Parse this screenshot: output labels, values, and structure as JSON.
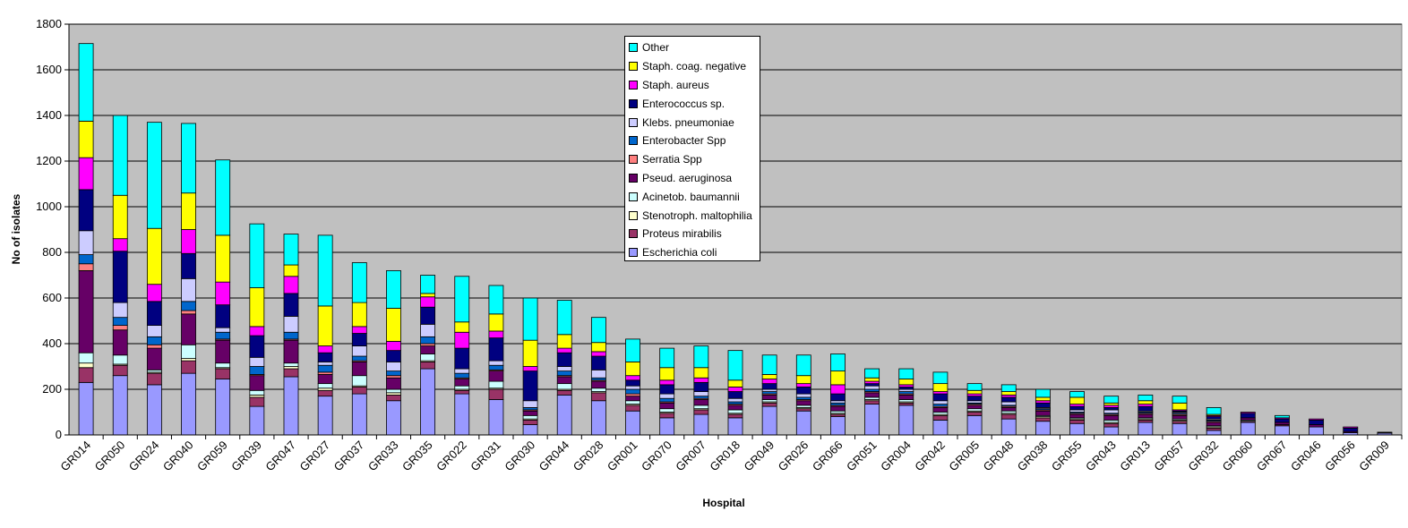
{
  "chart_data": {
    "type": "bar",
    "stacked": true,
    "title": "",
    "xlabel": "Hospital",
    "ylabel": "No of isolates",
    "ylim": [
      0,
      1800
    ],
    "yticks": [
      0,
      200,
      400,
      600,
      800,
      1000,
      1200,
      1400,
      1600,
      1800
    ],
    "grid": true,
    "legend_position": "top-center",
    "plot_background": "#C0C0C0",
    "categories": [
      "GR014",
      "GR050",
      "GR024",
      "GR040",
      "GR059",
      "GR039",
      "GR047",
      "GR027",
      "GR037",
      "GR033",
      "GR035",
      "GR022",
      "GR031",
      "GR030",
      "GR044",
      "GR028",
      "GR001",
      "GR070",
      "GR007",
      "GR018",
      "GR049",
      "GR026",
      "GR066",
      "GR051",
      "GR004",
      "GR042",
      "GR005",
      "GR048",
      "GR038",
      "GR055",
      "GR043",
      "GR013",
      "GR057",
      "GR032",
      "GR060",
      "GR067",
      "GR046",
      "GR056",
      "GR009"
    ],
    "series": [
      {
        "name": "Escherichia coli",
        "color": "#9999FF",
        "values": [
          230,
          260,
          220,
          270,
          245,
          125,
          255,
          170,
          180,
          150,
          290,
          180,
          155,
          45,
          175,
          150,
          105,
          75,
          90,
          75,
          125,
          105,
          80,
          135,
          130,
          65,
          85,
          70,
          60,
          50,
          35,
          55,
          50,
          20,
          55,
          40,
          35,
          10,
          8
        ]
      },
      {
        "name": "Proteus mirabilis",
        "color": "#993366",
        "values": [
          65,
          45,
          50,
          55,
          45,
          40,
          35,
          25,
          30,
          25,
          30,
          15,
          45,
          20,
          20,
          35,
          25,
          20,
          20,
          15,
          15,
          10,
          10,
          15,
          10,
          20,
          15,
          20,
          15,
          15,
          15,
          10,
          10,
          10,
          5,
          5,
          0,
          0,
          0
        ]
      },
      {
        "name": "Stenotroph. maltophilia",
        "color": "#FFFFCC",
        "values": [
          20,
          5,
          5,
          10,
          5,
          10,
          10,
          10,
          5,
          10,
          5,
          5,
          5,
          5,
          5,
          5,
          5,
          5,
          5,
          5,
          5,
          5,
          5,
          5,
          5,
          5,
          5,
          5,
          5,
          5,
          5,
          5,
          5,
          5,
          0,
          0,
          0,
          0,
          0
        ]
      },
      {
        "name": "Acinetob. baumannii",
        "color": "#CCFFFF",
        "values": [
          45,
          40,
          10,
          60,
          20,
          20,
          15,
          20,
          45,
          15,
          30,
          15,
          30,
          15,
          25,
          15,
          15,
          15,
          15,
          15,
          10,
          10,
          10,
          10,
          10,
          10,
          10,
          10,
          5,
          5,
          10,
          5,
          5,
          5,
          5,
          0,
          0,
          0,
          0
        ]
      },
      {
        "name": "Pseud. aeruginosa",
        "color": "#660066",
        "values": [
          360,
          110,
          95,
          135,
          100,
          65,
          100,
          40,
          60,
          50,
          35,
          30,
          45,
          20,
          30,
          30,
          20,
          25,
          25,
          20,
          20,
          20,
          20,
          20,
          20,
          20,
          15,
          15,
          20,
          15,
          20,
          15,
          15,
          15,
          10,
          10,
          10,
          5,
          2
        ]
      },
      {
        "name": "Serratia Spp",
        "color": "#FF8080",
        "values": [
          30,
          20,
          15,
          15,
          5,
          5,
          5,
          10,
          5,
          10,
          10,
          5,
          5,
          5,
          5,
          5,
          10,
          5,
          5,
          5,
          5,
          5,
          5,
          5,
          5,
          5,
          5,
          5,
          5,
          5,
          5,
          5,
          5,
          5,
          0,
          0,
          0,
          0,
          0
        ]
      },
      {
        "name": "Enterobacter Spp",
        "color": "#0066CC",
        "values": [
          40,
          35,
          35,
          40,
          30,
          35,
          30,
          30,
          20,
          20,
          30,
          20,
          20,
          10,
          20,
          10,
          20,
          15,
          10,
          10,
          10,
          10,
          10,
          10,
          10,
          10,
          5,
          5,
          5,
          5,
          5,
          5,
          5,
          5,
          0,
          0,
          0,
          0,
          0
        ]
      },
      {
        "name": "Klebs. pneumoniae",
        "color": "#CCCCFF",
        "values": [
          105,
          65,
          50,
          100,
          20,
          40,
          70,
          15,
          45,
          40,
          55,
          20,
          20,
          30,
          20,
          35,
          15,
          20,
          20,
          15,
          10,
          15,
          10,
          15,
          10,
          15,
          10,
          15,
          5,
          10,
          15,
          5,
          5,
          5,
          0,
          0,
          0,
          0,
          0
        ]
      },
      {
        "name": "Enterococcus sp.",
        "color": "#000080",
        "values": [
          180,
          225,
          105,
          110,
          100,
          95,
          100,
          40,
          55,
          50,
          75,
          90,
          100,
          130,
          60,
          60,
          25,
          40,
          40,
          30,
          25,
          30,
          30,
          10,
          10,
          30,
          20,
          20,
          20,
          15,
          10,
          20,
          5,
          10,
          20,
          15,
          20,
          15,
          2
        ]
      },
      {
        "name": "Staph. aureus",
        "color": "#FF00FF",
        "values": [
          140,
          55,
          75,
          105,
          100,
          40,
          75,
          30,
          30,
          40,
          45,
          70,
          30,
          20,
          20,
          20,
          20,
          20,
          20,
          20,
          20,
          15,
          40,
          10,
          10,
          10,
          10,
          10,
          10,
          10,
          10,
          10,
          5,
          5,
          5,
          5,
          5,
          5,
          0
        ]
      },
      {
        "name": "Staph. coag. negative",
        "color": "#FFFF00",
        "values": [
          160,
          190,
          245,
          160,
          205,
          170,
          50,
          175,
          105,
          145,
          15,
          45,
          75,
          115,
          60,
          40,
          60,
          55,
          45,
          30,
          20,
          35,
          60,
          15,
          25,
          35,
          15,
          15,
          15,
          30,
          10,
          15,
          30,
          5,
          0,
          0,
          0,
          0,
          0
        ]
      },
      {
        "name": "Other",
        "color": "#00FFFF",
        "values": [
          340,
          350,
          465,
          305,
          330,
          280,
          135,
          310,
          175,
          165,
          80,
          200,
          125,
          185,
          150,
          110,
          100,
          85,
          95,
          130,
          85,
          90,
          75,
          40,
          45,
          50,
          30,
          30,
          35,
          25,
          30,
          25,
          30,
          30,
          0,
          10,
          0,
          0,
          0
        ]
      }
    ]
  }
}
